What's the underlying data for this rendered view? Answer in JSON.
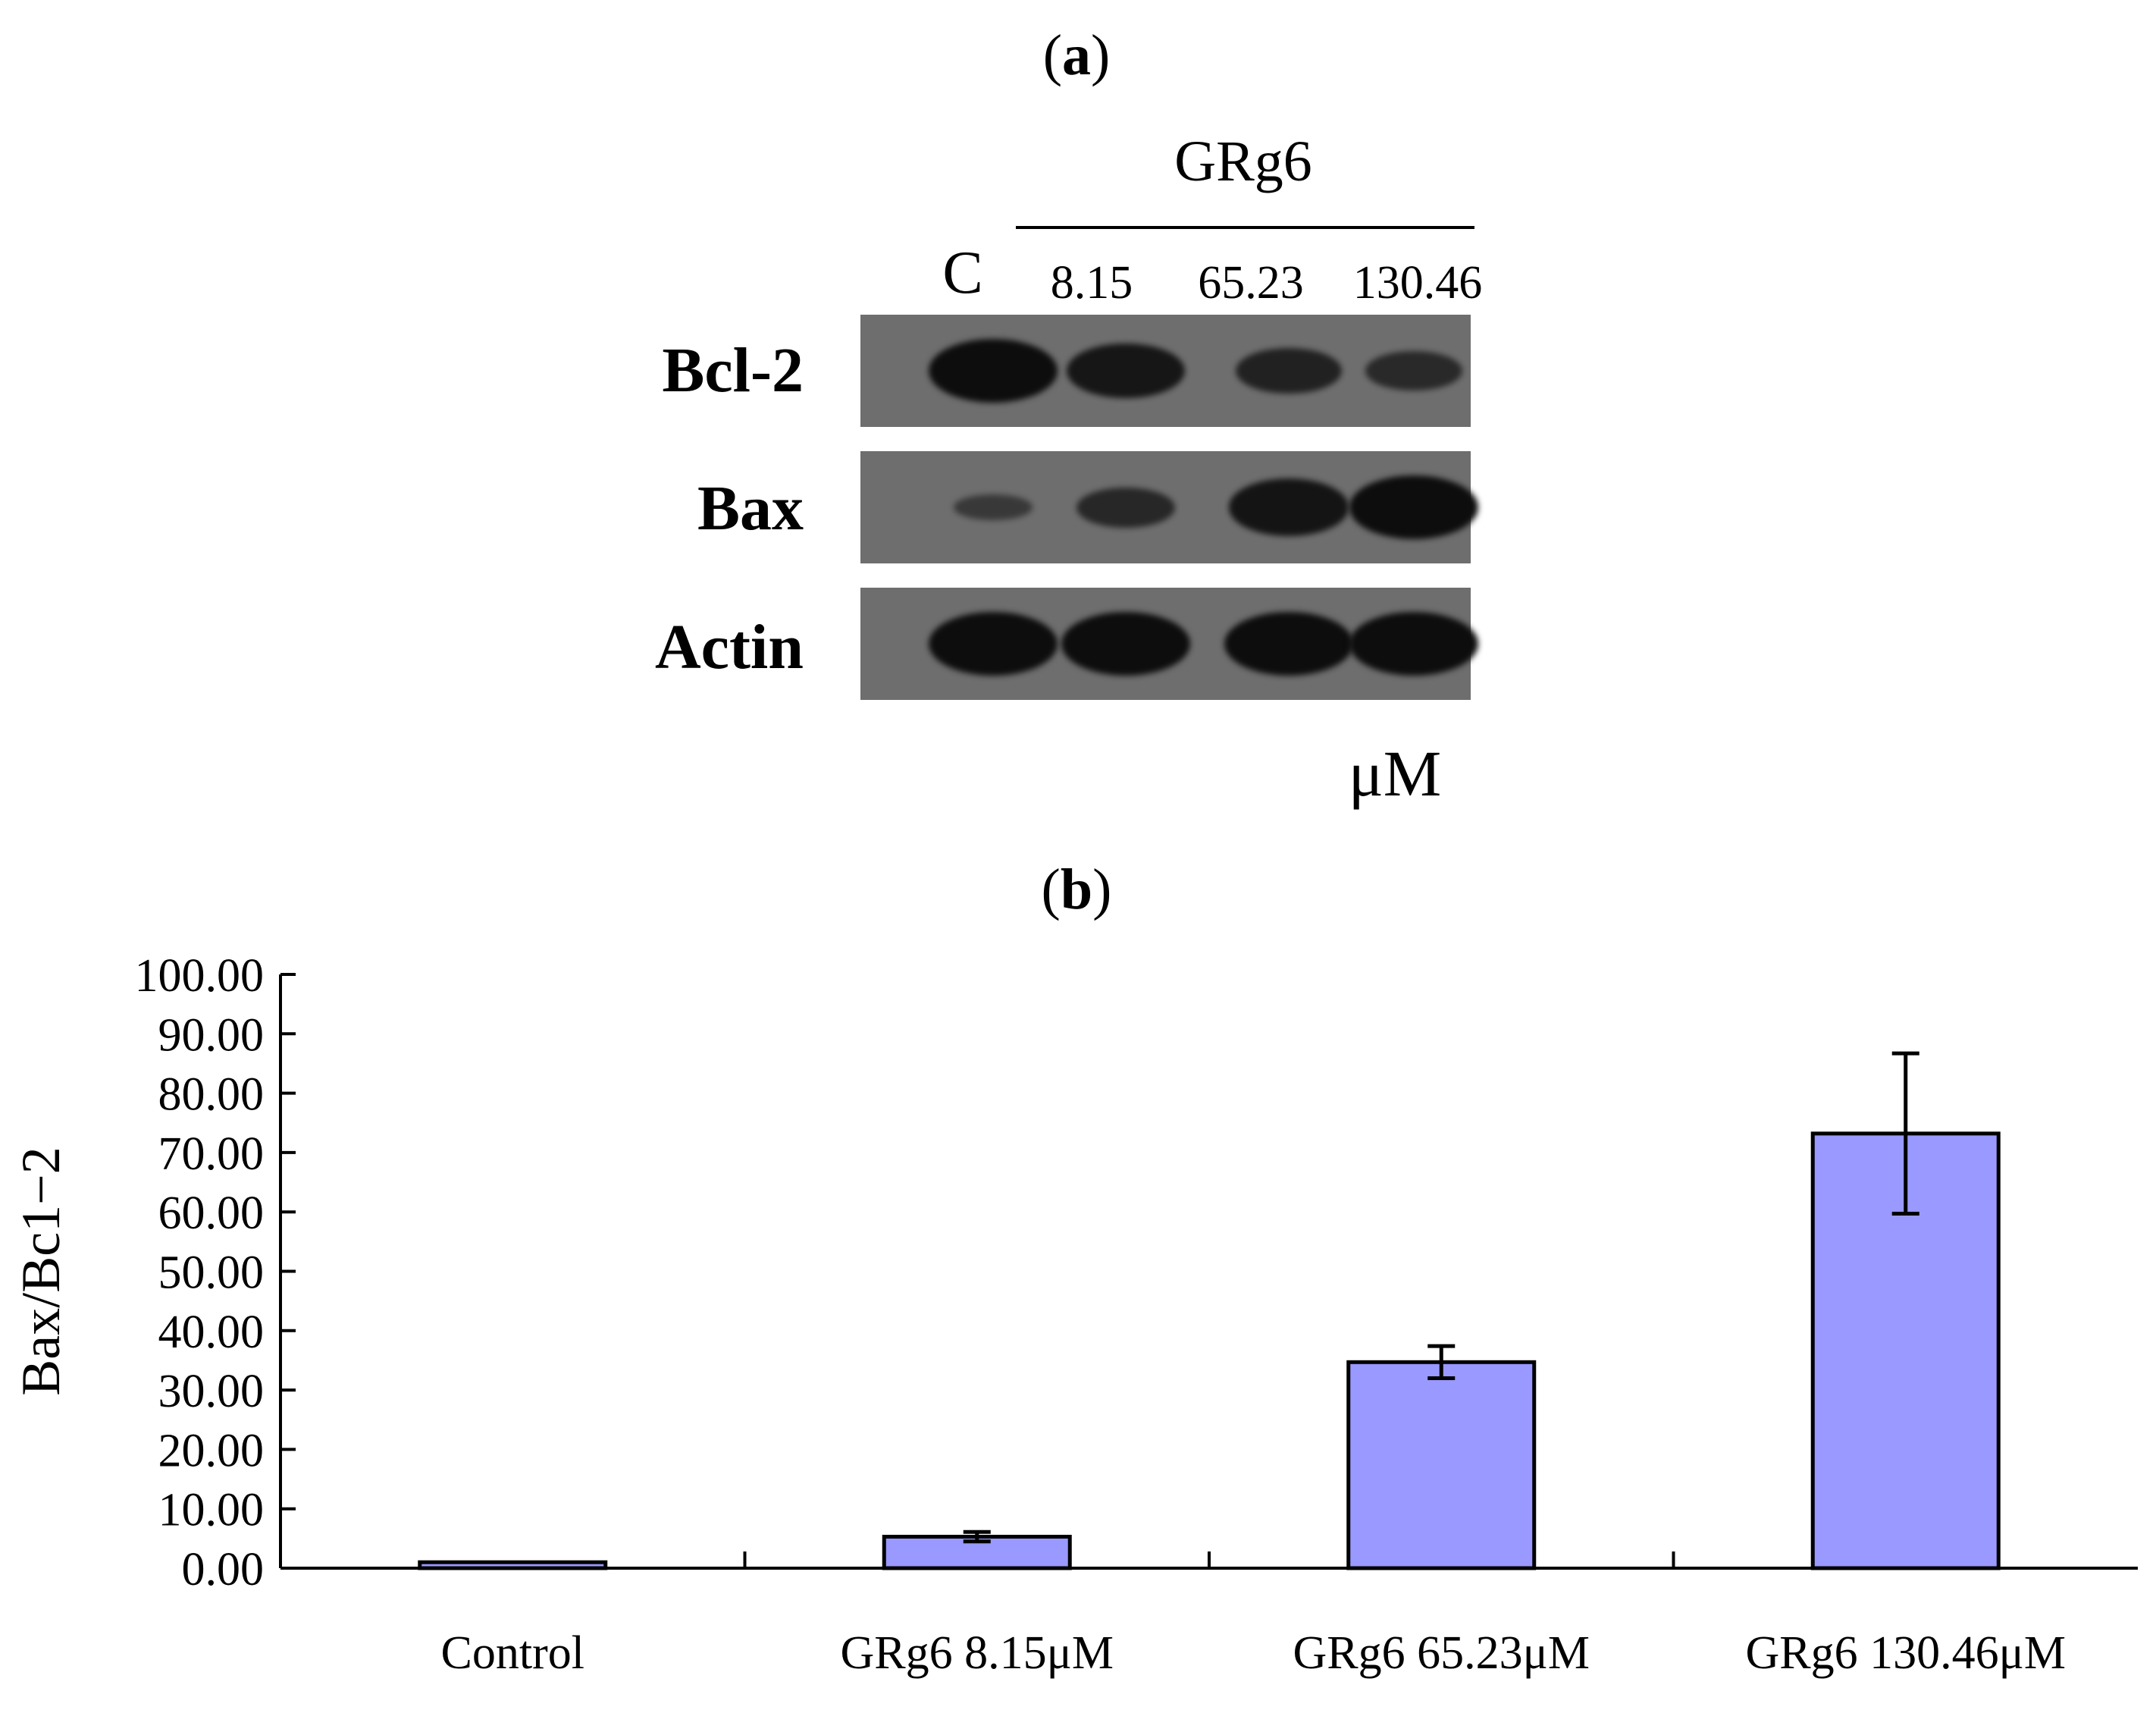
{
  "panel_a": {
    "label": "a",
    "group_label": "GRg6",
    "lanes": [
      "C",
      "8.15",
      "65.23",
      "130.46"
    ],
    "unit": "μM",
    "blots": [
      {
        "name": "Bcl-2",
        "intensities": [
          1.0,
          0.82,
          0.62,
          0.48
        ]
      },
      {
        "name": "Bax",
        "intensities": [
          0.18,
          0.5,
          0.86,
          1.0
        ]
      },
      {
        "name": "Actin",
        "intensities": [
          1.0,
          1.0,
          1.0,
          1.0
        ]
      }
    ]
  },
  "panel_b": {
    "label": "b"
  },
  "chart_data": {
    "type": "bar",
    "categories": [
      "Control",
      "GRg6 8.15μM",
      "GRg6 65.23μM",
      "GRg6 130.46μM"
    ],
    "values": [
      1.0,
      5.3,
      34.7,
      73.2
    ],
    "error": [
      0.2,
      0.8,
      2.7,
      13.5
    ],
    "ylabel": "Bax/Bc1−2",
    "ylim": [
      0,
      100
    ],
    "yticks": [
      "0.00",
      "10.00",
      "20.00",
      "30.00",
      "40.00",
      "50.00",
      "60.00",
      "70.00",
      "80.00",
      "90.00",
      "100.00"
    ],
    "bar_color": "#9999ff",
    "grid": false
  }
}
